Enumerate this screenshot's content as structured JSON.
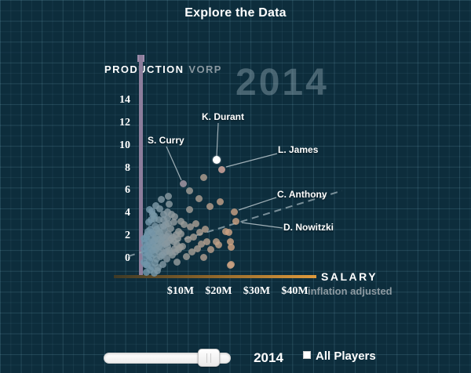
{
  "title": "Explore the Data",
  "axes": {
    "y_primary": "PRODUCTION",
    "y_secondary": "VORP",
    "x_primary": "SALARY",
    "x_secondary": "inflation adjusted",
    "y_ticks": [
      "14",
      "12",
      "10",
      "8",
      "6",
      "4",
      "2",
      "0"
    ],
    "x_ticks": [
      "$10M",
      "$20M",
      "$30M",
      "$40M"
    ]
  },
  "watermark_year": "2014",
  "controls": {
    "slider_year": "2014",
    "all_players_label": "All Players",
    "checkbox_checked": false
  },
  "colors": {
    "background": "#0d2d3c",
    "grid_line": "#2a5266",
    "y_axis": "#8c7d9b",
    "x_axis_orange": "#e09b3d",
    "dot_low_salary": "#6d96ad",
    "dot_high_salary": "#d0a280",
    "highlight_dot": "#ffffff",
    "trend_line": "#93a7b0",
    "secondary_text": "#8d9aa1"
  },
  "chart_data": {
    "type": "scatter",
    "title": "Explore the Data",
    "year": "2014",
    "xlabel": "SALARY (inflation adjusted)",
    "ylabel": "PRODUCTION (VORP)",
    "x_ticks_m": [
      10,
      20,
      30,
      40
    ],
    "y_ticks": [
      14,
      12,
      10,
      8,
      6,
      4,
      2,
      0
    ],
    "xlim_m": [
      0,
      45
    ],
    "ylim": [
      -2,
      15
    ],
    "grid": true,
    "labeled_points": [
      {
        "label": "K. Durant",
        "salary_m": 19.5,
        "vorp": 8.7,
        "color": "#ffffff",
        "highlight": true
      },
      {
        "label": "S. Curry",
        "salary_m": 10.8,
        "vorp": 6.6,
        "color": "#a89aa6",
        "highlight": false
      },
      {
        "label": "L. James",
        "salary_m": 20.9,
        "vorp": 7.9,
        "color": "#d9aba0",
        "highlight": false
      },
      {
        "label": "C. Anthony",
        "salary_m": 24.2,
        "vorp": 4.1,
        "color": "#c7a084",
        "highlight": false
      },
      {
        "label": "D. Nowitzki",
        "salary_m": 24.6,
        "vorp": 3.3,
        "color": "#c9a183",
        "highlight": false
      }
    ],
    "trend_line": {
      "start_salary_m": -3.8,
      "start_vorp": 0.2,
      "end_salary_m": 52.4,
      "end_vorp": 6.0
    },
    "points": [
      [
        0.5,
        -0.3
      ],
      [
        0.8,
        0.2
      ],
      [
        1.0,
        1.1
      ],
      [
        1.2,
        -0.6
      ],
      [
        1.3,
        2.1
      ],
      [
        1.5,
        0.6
      ],
      [
        1.6,
        1.5
      ],
      [
        1.8,
        -0.2
      ],
      [
        2.0,
        0.9
      ],
      [
        2.1,
        2.6
      ],
      [
        2.2,
        0.1
      ],
      [
        2.3,
        1.8
      ],
      [
        2.5,
        -0.7
      ],
      [
        2.6,
        1.2
      ],
      [
        2.8,
        2.2
      ],
      [
        3.0,
        0.4
      ],
      [
        3.1,
        1.6
      ],
      [
        3.2,
        -0.4
      ],
      [
        3.4,
        2.9
      ],
      [
        3.5,
        0.8
      ],
      [
        3.6,
        1.9
      ],
      [
        3.8,
        0.0
      ],
      [
        4.0,
        1.3
      ],
      [
        4.1,
        2.4
      ],
      [
        4.2,
        -0.8
      ],
      [
        4.4,
        0.6
      ],
      [
        4.5,
        1.7
      ],
      [
        4.7,
        2.8
      ],
      [
        4.8,
        0.2
      ],
      [
        5.0,
        1.0
      ],
      [
        5.2,
        2.0
      ],
      [
        5.3,
        -0.5
      ],
      [
        5.5,
        1.4
      ],
      [
        5.7,
        2.5
      ],
      [
        5.8,
        0.5
      ],
      [
        6.0,
        1.8
      ],
      [
        6.2,
        3.0
      ],
      [
        6.3,
        0.0
      ],
      [
        6.5,
        1.1
      ],
      [
        6.8,
        2.2
      ],
      [
        7.0,
        0.7
      ],
      [
        7.2,
        1.6
      ],
      [
        7.5,
        2.7
      ],
      [
        7.8,
        0.3
      ],
      [
        8.0,
        1.9
      ],
      [
        8.2,
        3.2
      ],
      [
        8.5,
        0.9
      ],
      [
        8.8,
        2.1
      ],
      [
        9.0,
        1.2
      ],
      [
        9.5,
        2.4
      ],
      [
        0.6,
        0.5
      ],
      [
        0.7,
        1.4
      ],
      [
        0.9,
        -0.5
      ],
      [
        1.1,
        1.9
      ],
      [
        1.4,
        2.4
      ],
      [
        1.7,
        0.3
      ],
      [
        1.9,
        1.2
      ],
      [
        2.4,
        2.3
      ],
      [
        2.7,
        0.7
      ],
      [
        2.9,
        1.5
      ],
      [
        3.3,
        1.0
      ],
      [
        3.7,
        2.6
      ],
      [
        3.9,
        1.7
      ],
      [
        4.3,
        1.1
      ],
      [
        4.6,
        2.3
      ],
      [
        4.9,
        1.5
      ],
      [
        5.1,
        0.3
      ],
      [
        5.4,
        1.9
      ],
      [
        5.6,
        2.9
      ],
      [
        5.9,
        1.3
      ],
      [
        6.1,
        0.6
      ],
      [
        6.4,
        2.0
      ],
      [
        6.7,
        1.4
      ],
      [
        6.9,
        3.1
      ],
      [
        7.3,
        0.5
      ],
      [
        7.7,
        1.8
      ],
      [
        8.3,
        1.5
      ],
      [
        8.7,
        0.6
      ],
      [
        9.2,
        1.8
      ],
      [
        9.8,
        1.0
      ],
      [
        1.0,
        -1.2
      ],
      [
        2.0,
        -1.0
      ],
      [
        3.0,
        -1.3
      ],
      [
        4.0,
        -1.1
      ],
      [
        0.4,
        0.9
      ],
      [
        0.5,
        1.8
      ],
      [
        1.6,
        3.2
      ],
      [
        2.2,
        3.4
      ],
      [
        3.1,
        3.5
      ],
      [
        4.4,
        3.4
      ],
      [
        5.6,
        3.4
      ],
      [
        6.6,
        3.6
      ],
      [
        2.6,
        3.9
      ],
      [
        1.8,
        4.3
      ],
      [
        2.5,
        4.2
      ],
      [
        3.6,
        4.7
      ],
      [
        4.5,
        4.4
      ],
      [
        5.0,
        5.2
      ],
      [
        6.9,
        5.5
      ],
      [
        3.0,
        3.8
      ],
      [
        5.5,
        3.9
      ],
      [
        6.5,
        4.1
      ],
      [
        7.0,
        4.8
      ],
      [
        7.7,
        3.9
      ],
      [
        8.5,
        3.7
      ],
      [
        10.0,
        3.3
      ],
      [
        9.0,
        -0.3
      ],
      [
        9.5,
        0.8
      ],
      [
        10.0,
        2.2
      ],
      [
        10.5,
        1.1
      ],
      [
        11.0,
        3.0
      ],
      [
        11.5,
        0.2
      ],
      [
        12.0,
        1.7
      ],
      [
        12.5,
        2.8
      ],
      [
        13.0,
        0.6
      ],
      [
        13.5,
        1.9
      ],
      [
        14.0,
        3.1
      ],
      [
        14.5,
        0.9
      ],
      [
        15.0,
        2.3
      ],
      [
        15.5,
        1.3
      ],
      [
        16.0,
        0.1
      ],
      [
        16.5,
        2.6
      ],
      [
        17.0,
        1.5
      ],
      [
        18.0,
        0.8
      ],
      [
        19.3,
        1.5
      ],
      [
        19.9,
        1.2
      ],
      [
        21.8,
        2.4
      ],
      [
        22.6,
        2.3
      ],
      [
        23.0,
        1.5
      ],
      [
        23.4,
        1.0
      ],
      [
        23.4,
        -0.5
      ],
      [
        23.0,
        -0.6
      ],
      [
        16.0,
        7.2
      ],
      [
        12.3,
        6.0
      ],
      [
        14.9,
        5.3
      ],
      [
        12.3,
        4.3
      ],
      [
        17.8,
        4.6
      ],
      [
        20.5,
        5.0
      ]
    ]
  }
}
